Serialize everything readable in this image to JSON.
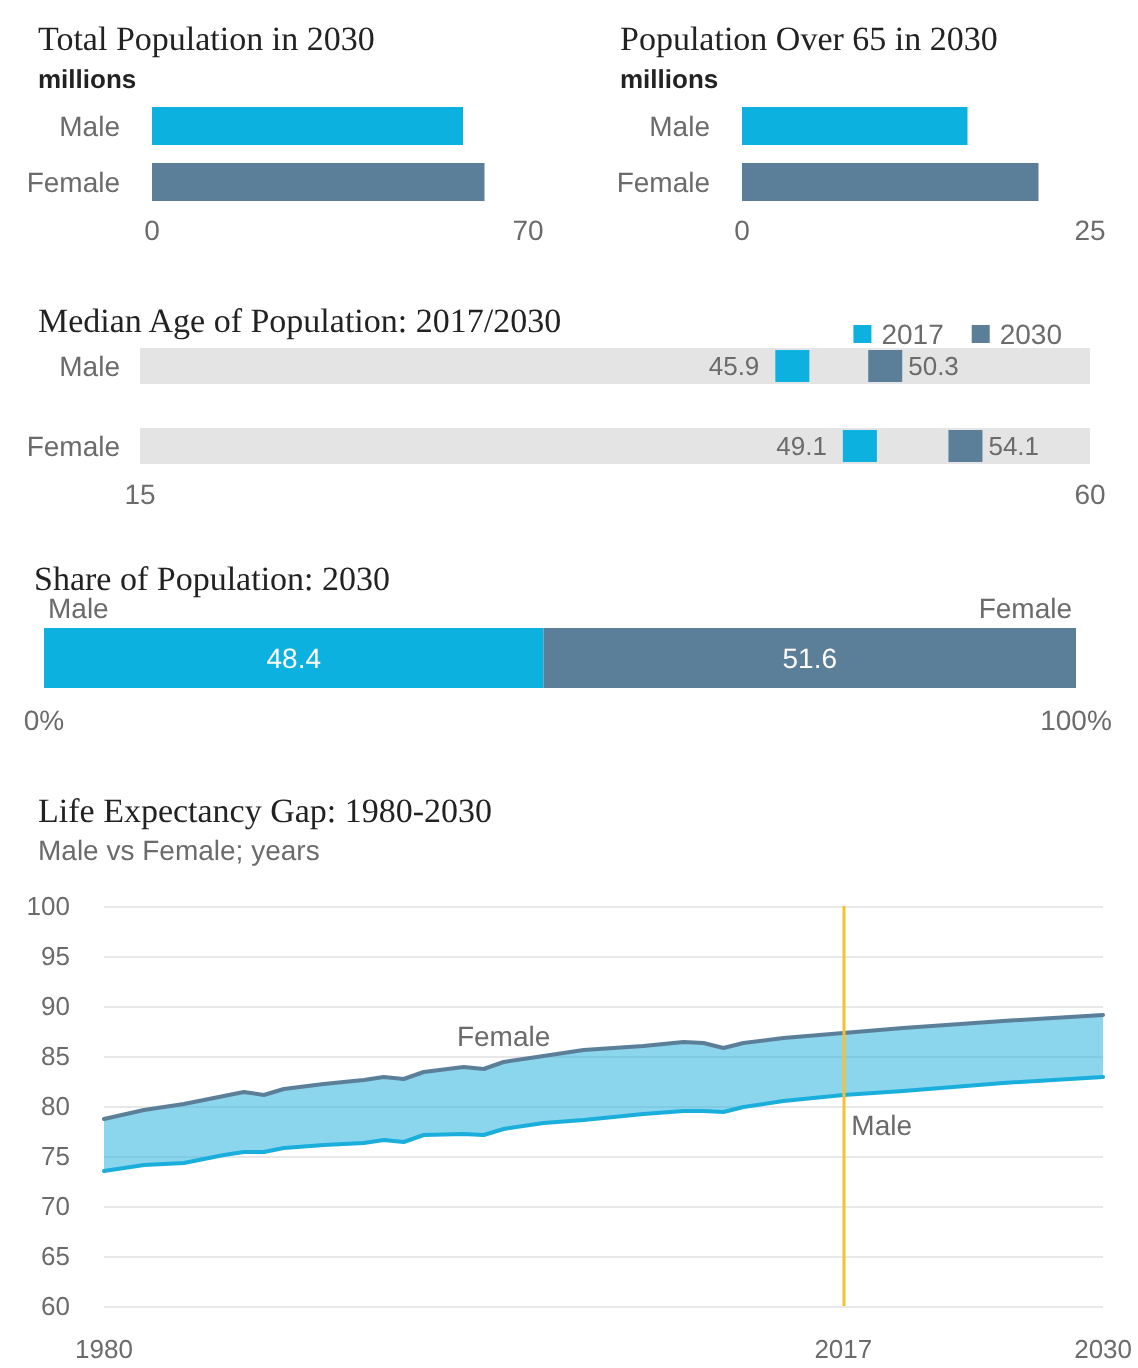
{
  "chart_data": [
    {
      "type": "bar",
      "orientation": "horizontal",
      "title": "Total Population in 2030",
      "subtitle": "millions",
      "categories": [
        "Male",
        "Female"
      ],
      "values": [
        57.9,
        61.9
      ],
      "colors": [
        "#0db1df",
        "#5b7f99"
      ],
      "xlim": [
        0,
        70
      ],
      "xticks": [
        0,
        70
      ]
    },
    {
      "type": "bar",
      "orientation": "horizontal",
      "title": "Population Over 65 in 2030",
      "subtitle": "millions",
      "categories": [
        "Male",
        "Female"
      ],
      "values": [
        16.2,
        21.3
      ],
      "colors": [
        "#0db1df",
        "#5b7f99"
      ],
      "xlim": [
        0,
        25
      ],
      "xticks": [
        0,
        25
      ]
    },
    {
      "type": "scatter",
      "orientation": "horizontal",
      "title": "Median Age of Population: 2017/2030",
      "categories": [
        "Male",
        "Female"
      ],
      "series": [
        {
          "type": "bar",
          "color": "#e4e4e4",
          "values": [
            60,
            60
          ]
        },
        {
          "name": "2017",
          "color": "#0db1df",
          "values": [
            45.9,
            49.1
          ],
          "value_labels": [
            "45.9",
            "49.1"
          ]
        },
        {
          "name": "2030",
          "color": "#5b7f99",
          "values": [
            50.3,
            54.1
          ],
          "value_labels": [
            "50.3",
            "54.1"
          ]
        }
      ],
      "xlim": [
        15,
        60
      ],
      "xticks": [
        15,
        60
      ],
      "marker": "square",
      "legend": "top right"
    },
    {
      "type": "bar",
      "orientation": "horizontal",
      "stacked": true,
      "title": "Share of Population: 2030",
      "categories": [
        null
      ],
      "series": [
        {
          "name": "Male",
          "color": "#0db1df",
          "values": [
            48.4
          ]
        },
        {
          "name": "Female",
          "color": "#5b7f99",
          "values": [
            51.6
          ]
        }
      ],
      "xlim": [
        0,
        100
      ],
      "xticks": [
        {
          "value": 0,
          "label": "0%"
        },
        {
          "value": 100,
          "label": "100%"
        }
      ],
      "data_labels": true,
      "legend": false
    },
    {
      "type": "line",
      "title": "Life Expectancy Gap: 1980-2030",
      "subtitle": "Male vs Female; years",
      "x": [
        1980,
        1982,
        1984,
        1986,
        1987,
        1988,
        1989,
        1991,
        1993,
        1994,
        1995,
        1996,
        1998,
        1999,
        2000,
        2002,
        2004,
        2007,
        2009,
        2010,
        2011,
        2012,
        2014,
        2017,
        2020,
        2025,
        2030
      ],
      "series": [
        {
          "name": "Female",
          "color": "#5b7f99",
          "values": [
            78.7,
            79.6,
            80.2,
            81.0,
            81.4,
            81.1,
            81.7,
            82.2,
            82.6,
            82.9,
            82.7,
            83.4,
            83.9,
            83.7,
            84.4,
            85.0,
            85.6,
            86.0,
            86.4,
            86.3,
            85.8,
            86.3,
            86.8,
            87.3,
            87.8,
            88.5,
            89.1
          ]
        },
        {
          "name": "Male",
          "color": "#19aedb",
          "values": [
            73.5,
            74.1,
            74.3,
            75.1,
            75.4,
            75.4,
            75.8,
            76.1,
            76.3,
            76.6,
            76.4,
            77.1,
            77.2,
            77.1,
            77.7,
            78.3,
            78.6,
            79.2,
            79.5,
            79.5,
            79.4,
            79.9,
            80.5,
            81.1,
            81.5,
            82.3,
            82.9
          ],
          "lower": [
            73.5,
            74.1,
            74.3,
            75.1,
            75.4,
            75.4,
            75.8,
            76.1,
            76.3,
            76.6,
            76.4,
            77.1,
            77.2,
            77.1,
            77.7,
            78.3,
            78.6,
            79.2,
            79.5,
            79.5,
            79.4,
            79.9,
            80.5,
            81.1,
            81.5,
            82.3,
            82.9
          ],
          "upper": [
            78.7,
            79.6,
            80.2,
            81.0,
            81.4,
            81.1,
            81.7,
            82.2,
            82.6,
            82.9,
            82.7,
            83.4,
            83.9,
            83.7,
            84.4,
            85.0,
            85.6,
            86.0,
            86.4,
            86.3,
            85.8,
            86.3,
            86.8,
            87.3,
            87.8,
            88.5,
            89.1
          ]
        }
      ],
      "xlim": [
        1980,
        2030
      ],
      "xticks": [
        1980,
        2017,
        2030
      ],
      "ylim": [
        60,
        100
      ],
      "yticks": [
        60,
        65,
        70,
        75,
        80,
        85,
        90,
        95,
        100
      ],
      "grid": "y",
      "marker": "none",
      "legend": false,
      "ref_lines": [
        {
          "axis": "x",
          "value": 2017,
          "color": "#f5c133"
        }
      ]
    }
  ]
}
